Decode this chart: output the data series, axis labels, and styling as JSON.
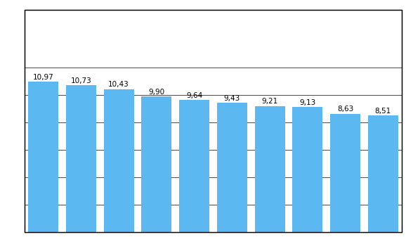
{
  "values": [
    10.97,
    10.73,
    10.43,
    9.9,
    9.64,
    9.43,
    9.21,
    9.13,
    8.63,
    8.51
  ],
  "labels": [
    "10,97",
    "10,73",
    "10,43",
    "9,90",
    "9,64",
    "9,43",
    "9,21",
    "9,13",
    "8,63",
    "8,51"
  ],
  "bar_color": "#5BB8F0",
  "background_color": "#ffffff",
  "figure_background": "#ffffff",
  "border_color": "#000000",
  "ylim": [
    0,
    12
  ],
  "yticks": [
    0,
    2,
    4,
    6,
    8,
    10,
    12
  ],
  "grid_color": "#000000",
  "label_fontsize": 7.5,
  "bar_width": 0.8
}
